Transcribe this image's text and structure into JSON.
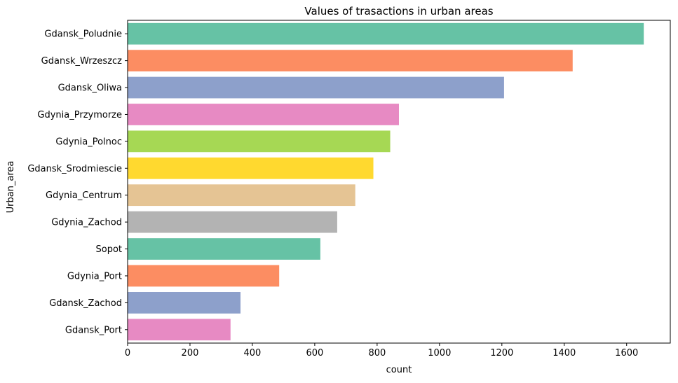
{
  "chart_data": {
    "type": "bar",
    "orientation": "horizontal",
    "title": "Values of trasactions in urban areas",
    "xlabel": "count",
    "ylabel": "Urban_area",
    "xlim": [
      0,
      1740
    ],
    "xticks": [
      0,
      200,
      400,
      600,
      800,
      1000,
      1200,
      1400,
      1600
    ],
    "grid": false,
    "categories": [
      "Gdansk_Poludnie",
      "Gdansk_Wrzeszcz",
      "Gdansk_Oliwa",
      "Gdynia_Przymorze",
      "Gdynia_Polnoc",
      "Gdansk_Srodmiescie",
      "Gdynia_Centrum",
      "Gdynia_Zachod",
      "Sopot",
      "Gdynia_Port",
      "Gdansk_Zachod",
      "Gdansk_Port"
    ],
    "values": [
      1655,
      1427,
      1207,
      870,
      842,
      788,
      730,
      672,
      618,
      486,
      362,
      330
    ],
    "colors": [
      "#66c2a5",
      "#fc8d62",
      "#8da0cb",
      "#e78ac3",
      "#a6d854",
      "#ffd92f",
      "#e5c494",
      "#b3b3b3",
      "#66c2a5",
      "#fc8d62",
      "#8da0cb",
      "#e78ac3"
    ]
  }
}
